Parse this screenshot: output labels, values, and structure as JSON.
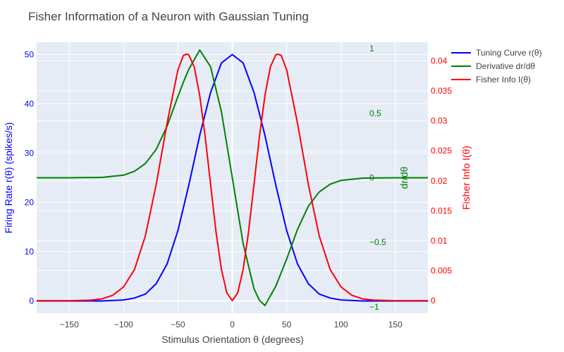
{
  "chart_data": {
    "type": "line",
    "title": "Fisher Information of a Neuron with Gaussian Tuning",
    "xlabel": "Stimulus Orientation θ (degrees)",
    "xlim": [
      -180,
      180
    ],
    "x_ticks": [
      -150,
      -100,
      -50,
      0,
      50,
      100,
      150
    ],
    "x_tick_labels": [
      "−150",
      "−100",
      "−50",
      "0",
      "50",
      "100",
      "150"
    ],
    "axes": {
      "y1": {
        "label": "Firing Rate r(θ) (spikes/s)",
        "range": [
          -2.5,
          52.5
        ],
        "ticks": [
          0,
          10,
          20,
          30,
          40,
          50
        ],
        "tick_labels": [
          "0",
          "10",
          "20",
          "30",
          "40",
          "50"
        ],
        "color": "#0000ff"
      },
      "y2": {
        "label": "dr/dθ",
        "range": [
          -1.05,
          1.05
        ],
        "ticks": [
          1,
          0.5,
          0,
          -0.5,
          -1
        ],
        "tick_labels": [
          "1",
          "0.5",
          "0",
          "−0.5",
          "−1"
        ],
        "color": "#008000"
      },
      "y3": {
        "label": "Fisher Info I(θ)",
        "range": [
          -0.0021,
          0.0431
        ],
        "ticks": [
          0,
          0.005,
          0.01,
          0.015,
          0.02,
          0.025,
          0.03,
          0.035,
          0.04
        ],
        "tick_labels": [
          "0",
          "0.005",
          "0.01",
          "0.015",
          "0.02",
          "0.025",
          "0.03",
          "0.035",
          "0.04"
        ],
        "color": "#ff0000"
      }
    },
    "series": [
      {
        "name": "Tuning Curve r(θ)",
        "axis": "y1",
        "color": "#0000ff",
        "x": [
          -180,
          -150,
          -120,
          -100,
          -90,
          -80,
          -70,
          -60,
          -50,
          -40,
          -30,
          -20,
          -10,
          0,
          10,
          20,
          30,
          40,
          50,
          60,
          70,
          80,
          90,
          100,
          120,
          150,
          180
        ],
        "y": [
          0,
          0,
          0,
          0.2,
          0.6,
          1.4,
          3.5,
          7.5,
          14.3,
          23.5,
          33.6,
          42.3,
          48.3,
          50,
          48.3,
          42.3,
          33.6,
          23.5,
          14.3,
          7.5,
          3.5,
          1.4,
          0.6,
          0.2,
          0,
          0,
          0
        ]
      },
      {
        "name": "Derivative dr/dθ",
        "axis": "y2",
        "color": "#008000",
        "x": [
          -180,
          -150,
          -120,
          -100,
          -90,
          -80,
          -70,
          -60,
          -50,
          -45,
          -40,
          -30,
          -20,
          -10,
          0,
          10,
          20,
          25,
          30,
          40,
          50,
          60,
          70,
          80,
          90,
          100,
          120,
          150,
          180
        ],
        "y": [
          0,
          0,
          0.003,
          0.02,
          0.05,
          0.11,
          0.22,
          0.4,
          0.63,
          0.74,
          0.84,
          0.99,
          0.86,
          0.51,
          0,
          -0.51,
          -0.86,
          -0.95,
          -0.99,
          -0.84,
          -0.63,
          -0.4,
          -0.22,
          -0.11,
          -0.05,
          -0.02,
          -0.003,
          0,
          0
        ]
      },
      {
        "name": "Fisher Info I(θ)",
        "axis": "y3",
        "color": "#ff0000",
        "x": [
          -180,
          -150,
          -130,
          -120,
          -110,
          -100,
          -90,
          -80,
          -70,
          -60,
          -50,
          -45,
          -42,
          -40,
          -35,
          -30,
          -25,
          -20,
          -15,
          -10,
          -5,
          0,
          5,
          10,
          15,
          20,
          25,
          30,
          35,
          40,
          42,
          45,
          50,
          60,
          70,
          80,
          90,
          100,
          110,
          120,
          130,
          150,
          180
        ],
        "y": [
          0,
          0,
          0.0001,
          0.0003,
          0.0009,
          0.0023,
          0.0052,
          0.0108,
          0.0194,
          0.0296,
          0.0385,
          0.0409,
          0.0411,
          0.041,
          0.039,
          0.0342,
          0.0274,
          0.0194,
          0.0115,
          0.0052,
          0.0013,
          0,
          0.0013,
          0.0052,
          0.0115,
          0.0194,
          0.0274,
          0.0342,
          0.039,
          0.041,
          0.0411,
          0.0409,
          0.0385,
          0.0296,
          0.0194,
          0.0108,
          0.0052,
          0.0023,
          0.0009,
          0.0003,
          0.0001,
          0,
          0
        ]
      }
    ],
    "legend": {
      "placement": "top-right"
    },
    "grid": true,
    "colors": {
      "plot_bg": "#e5ecf6",
      "grid": "#ffffff",
      "title": "#444444",
      "axis_text": "#444444"
    }
  }
}
